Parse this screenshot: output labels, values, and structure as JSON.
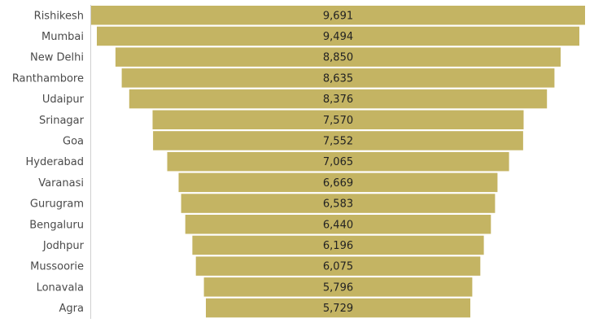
{
  "chart_data": {
    "type": "bar",
    "orientation": "horizontal-funnel",
    "categories": [
      "Rishikesh",
      "Mumbai",
      "New Delhi",
      "Ranthambore",
      "Udaipur",
      "Srinagar",
      "Goa",
      "Hyderabad",
      "Varanasi",
      "Gurugram",
      "Bengaluru",
      "Jodhpur",
      "Mussoorie",
      "Lonavala",
      "Agra"
    ],
    "values": [
      9691,
      9494,
      8850,
      8635,
      8376,
      7570,
      7552,
      7065,
      6669,
      6583,
      6440,
      6196,
      6075,
      5796,
      5729
    ],
    "value_labels": [
      "9,691",
      "9,494",
      "8,850",
      "8,635",
      "8,376",
      "7,570",
      "7,552",
      "7,065",
      "6,669",
      "6,583",
      "6,440",
      "6,196",
      "6,075",
      "5,796",
      "5,729"
    ],
    "bar_color": "#c4b463",
    "axis_color": "#d0d0d0",
    "grid": false,
    "legend": "none"
  }
}
